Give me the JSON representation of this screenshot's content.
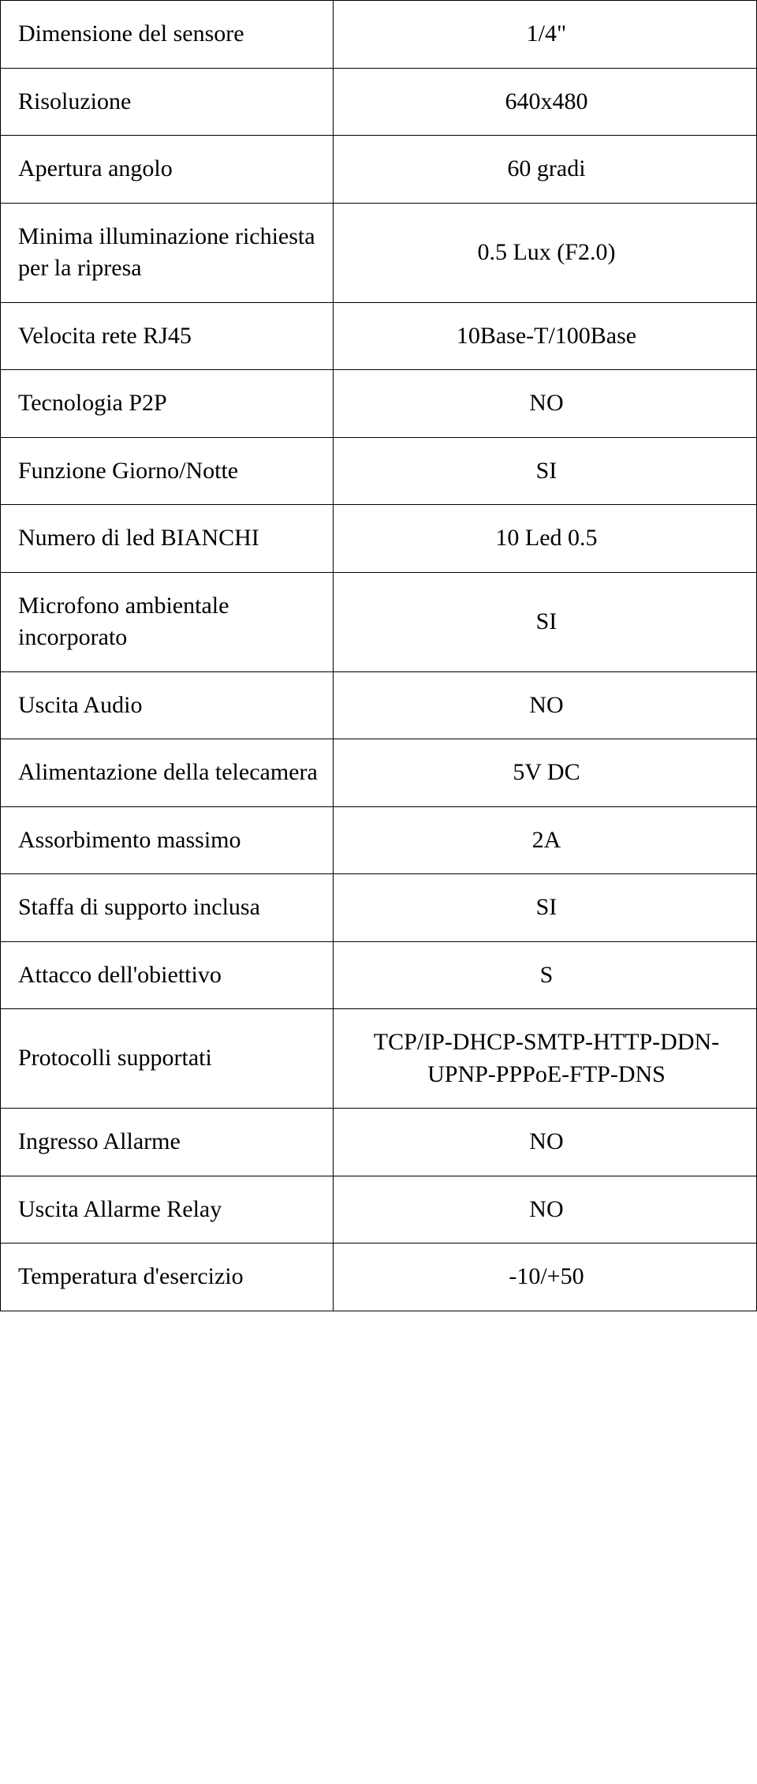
{
  "table": {
    "font_family": "Times New Roman",
    "font_size_pt": 30,
    "border_color": "#000000",
    "background_color": "#ffffff",
    "text_color": "#000000",
    "label_align": "left",
    "value_align": "center",
    "column_widths_pct": [
      44,
      56
    ],
    "rows": [
      {
        "label": "Dimensione del sensore",
        "value": "1/4\""
      },
      {
        "label": "Risoluzione",
        "value": "640x480"
      },
      {
        "label": "Apertura angolo",
        "value": "60 gradi"
      },
      {
        "label": "Minima illuminazione\nrichiesta per la ripresa",
        "value": "0.5 Lux (F2.0)"
      },
      {
        "label": "Velocita rete RJ45",
        "value": "10Base-T/100Base"
      },
      {
        "label": "Tecnologia P2P",
        "value": "NO"
      },
      {
        "label": "Funzione\nGiorno/Notte",
        "value": "SI"
      },
      {
        "label": "Numero di led\nBIANCHI",
        "value": "10 Led 0.5"
      },
      {
        "label": "Microfono ambientale\nincorporato",
        "value": "SI"
      },
      {
        "label": "Uscita Audio",
        "value": "NO"
      },
      {
        "label": "Alimentazione\ndella telecamera",
        "value": "5V DC"
      },
      {
        "label": "Assorbimento massimo",
        "value": "2A"
      },
      {
        "label": "Staffa di supporto inclusa",
        "value": "SI"
      },
      {
        "label": "Attacco dell'obiettivo",
        "value": "S"
      },
      {
        "label": "Protocolli supportati",
        "value": "TCP/IP-DHCP-SMTP-HTTP-DDN-UPNP-PPPoE-FTP-DNS"
      },
      {
        "label": "Ingresso Allarme",
        "value": "NO"
      },
      {
        "label": "Uscita Allarme Relay",
        "value": "NO"
      },
      {
        "label": "Temperatura d'esercizio",
        "value": "-10/+50"
      }
    ]
  }
}
